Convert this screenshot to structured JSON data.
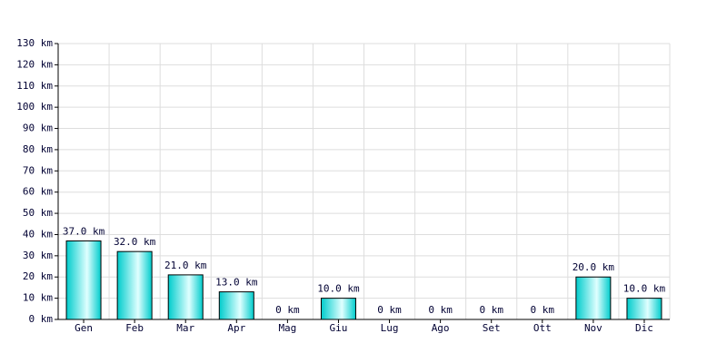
{
  "chart_data": {
    "type": "bar",
    "categories": [
      "Gen",
      "Feb",
      "Mar",
      "Apr",
      "Mag",
      "Giu",
      "Lug",
      "Ago",
      "Set",
      "Ott",
      "Nov",
      "Dic"
    ],
    "values": [
      37,
      32,
      21,
      13,
      0,
      10,
      0,
      0,
      0,
      0,
      20,
      10
    ],
    "value_labels": [
      "37.0 km",
      "32.0 km",
      "21.0 km",
      "13.0 km",
      "0 km",
      "10.0 km",
      "0 km",
      "0 km",
      "0 km",
      "0 km",
      "20.0 km",
      "10.0 km"
    ],
    "color": "#00cccc",
    "ylim": [
      0,
      130
    ],
    "yticks": [
      {
        "value": 0,
        "label": "0 km"
      },
      {
        "value": 10,
        "label": "10 km"
      },
      {
        "value": 20,
        "label": "20 km"
      },
      {
        "value": 30,
        "label": "30 km"
      },
      {
        "value": 40,
        "label": "40 km"
      },
      {
        "value": 50,
        "label": "50 km"
      },
      {
        "value": 60,
        "label": "60 km"
      },
      {
        "value": 70,
        "label": "70 km"
      },
      {
        "value": 80,
        "label": "80 km"
      },
      {
        "value": 90,
        "label": "90 km"
      },
      {
        "value": 100,
        "label": "100 km"
      },
      {
        "value": 110,
        "label": "110 km"
      },
      {
        "value": 120,
        "label": "120 km"
      },
      {
        "value": 130,
        "label": "130 km"
      }
    ],
    "grid": true
  }
}
